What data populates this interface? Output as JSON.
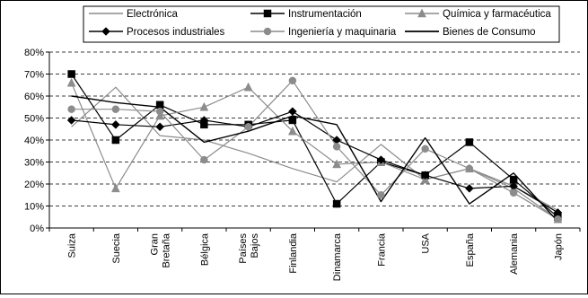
{
  "chart_data": {
    "type": "line",
    "title": "",
    "xlabel": "",
    "ylabel": "",
    "categories": [
      [
        "Suiza"
      ],
      [
        "Suecia"
      ],
      [
        "Gran",
        "Bretaña"
      ],
      [
        "Bélgica"
      ],
      [
        "Países",
        "Bajos"
      ],
      [
        "Finlandia"
      ],
      [
        "Dinamarca"
      ],
      [
        "Francia"
      ],
      [
        "USA"
      ],
      [
        "España"
      ],
      [
        "Alemania"
      ],
      [
        "Japón"
      ]
    ],
    "ylim": [
      0,
      80
    ],
    "yticks": [
      "0%",
      "10%",
      "20%",
      "30%",
      "40%",
      "50%",
      "60%",
      "70%",
      "80%"
    ],
    "ytick_values": [
      0,
      10,
      20,
      30,
      40,
      50,
      60,
      70,
      80
    ],
    "grid": "horizontal-dashed",
    "legend_position": "top",
    "series": [
      {
        "name": "Electrónica",
        "color": "#8c8c8c",
        "width": 1.2,
        "marker": "none",
        "values": [
          46,
          64,
          42,
          40,
          34,
          27,
          21,
          38,
          22,
          27,
          19,
          8
        ]
      },
      {
        "name": "Instrumentación",
        "color": "#000000",
        "width": 1.2,
        "marker": "square",
        "values": [
          70,
          40,
          56,
          47,
          47,
          49,
          11,
          30,
          24,
          39,
          22,
          5
        ]
      },
      {
        "name": "Química y farmacéutica",
        "color": "#8c8c8c",
        "width": 1.2,
        "marker": "triangle",
        "values": [
          66,
          18,
          51,
          55,
          64,
          44,
          29,
          30,
          22,
          27,
          18,
          4
        ]
      },
      {
        "name": "Procesos industriales",
        "color": "#000000",
        "width": 1.2,
        "marker": "diamond",
        "values": [
          49,
          47,
          46,
          49,
          46,
          53,
          40,
          31,
          24,
          18,
          19,
          7
        ]
      },
      {
        "name": "Ingeniería y maquinaria",
        "color": "#8c8c8c",
        "width": 1.2,
        "marker": "circle",
        "values": [
          54,
          54,
          53,
          31,
          46,
          67,
          37,
          15,
          36,
          27,
          16,
          4
        ]
      },
      {
        "name": "Bienes de Consumo",
        "color": "#000000",
        "width": 1.4,
        "marker": "none",
        "values": [
          60,
          57,
          55,
          39,
          44,
          51,
          47,
          12,
          41,
          11,
          25,
          3
        ]
      }
    ]
  }
}
